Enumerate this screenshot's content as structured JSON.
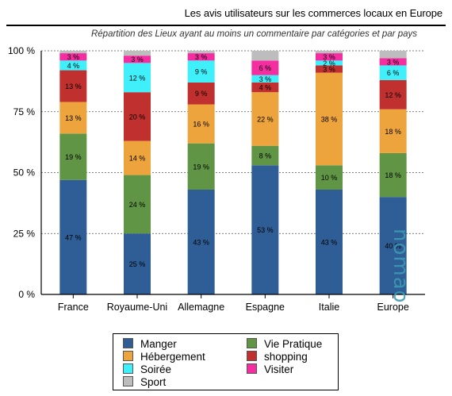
{
  "header": {
    "title": "Les avis utilisateurs sur les commerces locaux en Europe",
    "subtitle": "Répartition des Lieux ayant au moins un commentaire par catégories et par pays"
  },
  "watermark": "nomao",
  "chart_data": {
    "type": "bar",
    "stacked": true,
    "categories": [
      "France",
      "Royaume-Uni",
      "Allemagne",
      "Espagne",
      "Italie",
      "Europe"
    ],
    "ylim": [
      0,
      100
    ],
    "yticks": [
      0,
      25,
      50,
      75,
      100
    ],
    "ytick_labels": [
      "0 %",
      "25 %",
      "50 %",
      "75 %",
      "100 %"
    ],
    "grid": "horizontal-dashed",
    "legend_position": "bottom",
    "series": [
      {
        "name": "Manger",
        "color": "#2f5d95",
        "values": [
          47,
          25,
          43,
          53,
          43,
          40
        ],
        "labels": [
          "47 %",
          "25 %",
          "43 %",
          "53 %",
          "43 %",
          "40 %"
        ]
      },
      {
        "name": "Vie Pratique",
        "color": "#5f9544",
        "values": [
          19,
          24,
          19,
          8,
          10,
          18
        ],
        "labels": [
          "19 %",
          "24 %",
          "19 %",
          "8 %",
          "10 %",
          "18 %"
        ]
      },
      {
        "name": "Hébergement",
        "color": "#eda43c",
        "values": [
          13,
          14,
          16,
          22,
          38,
          18
        ],
        "labels": [
          "13 %",
          "14 %",
          "16 %",
          "22 %",
          "38 %",
          "18 %"
        ]
      },
      {
        "name": "shopping",
        "color": "#c0302e",
        "values": [
          13,
          20,
          9,
          4,
          3,
          12
        ],
        "labels": [
          "13 %",
          "20 %",
          "9 %",
          "4 %",
          "3 %",
          "12 %"
        ]
      },
      {
        "name": "Soirée",
        "color": "#3ff0fb",
        "values": [
          4,
          12,
          9,
          3,
          2,
          6
        ],
        "labels": [
          "4 %",
          "12 %",
          "9 %",
          "3 %",
          "2 %",
          "6 %"
        ]
      },
      {
        "name": "Visiter",
        "color": "#f42da0",
        "values": [
          3,
          3,
          3,
          6,
          3,
          3
        ],
        "labels": [
          "3 %",
          "3 %",
          "3 %",
          "6 %",
          "3 %",
          "3 %"
        ]
      },
      {
        "name": "Sport",
        "color": "#bdbdbd",
        "values": [
          1,
          2,
          1,
          4,
          1,
          3
        ],
        "labels": [
          "",
          "",
          "",
          "",
          "",
          ""
        ]
      }
    ]
  },
  "legend": {
    "items": [
      {
        "label": "Manger",
        "color": "#2f5d95"
      },
      {
        "label": "Vie Pratique",
        "color": "#5f9544"
      },
      {
        "label": "Hébergement",
        "color": "#eda43c"
      },
      {
        "label": "shopping",
        "color": "#c0302e"
      },
      {
        "label": "Soirée",
        "color": "#3ff0fb"
      },
      {
        "label": "Visiter",
        "color": "#f42da0"
      },
      {
        "label": "Sport",
        "color": "#bdbdbd"
      }
    ]
  }
}
